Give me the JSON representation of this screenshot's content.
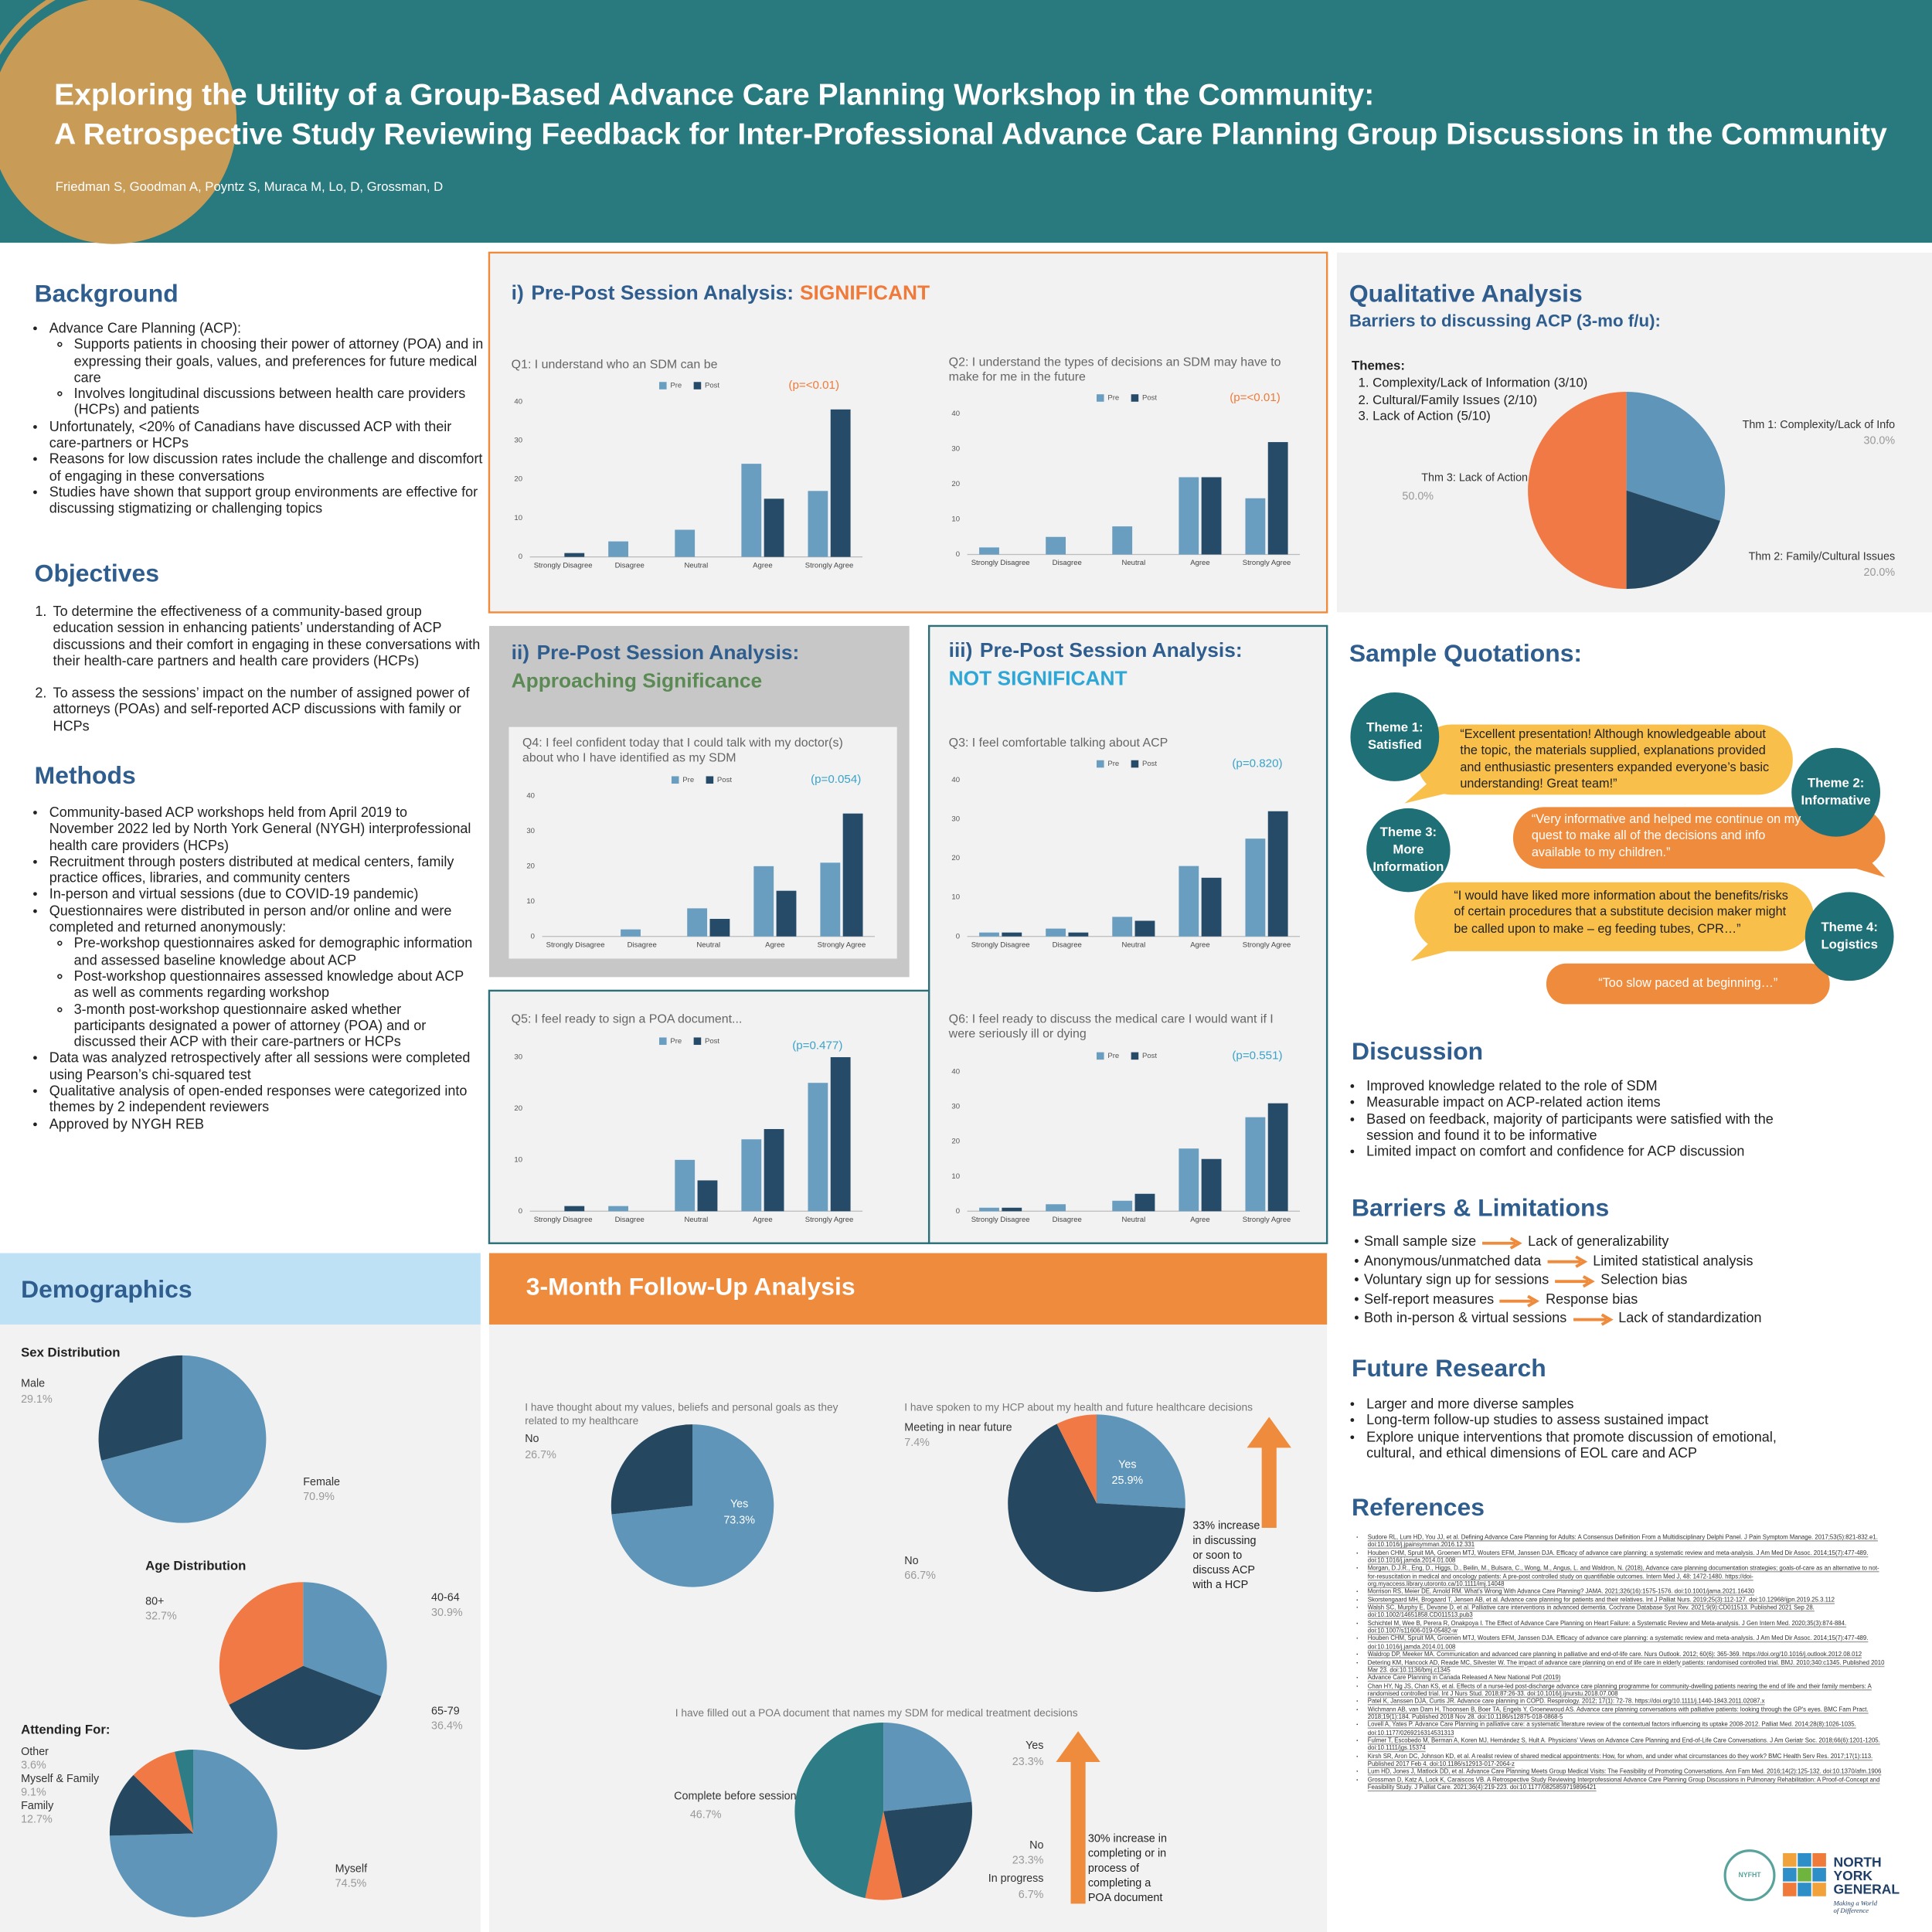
{
  "header": {
    "title_lines": [
      "Exploring the Utility of a Group-Based Advance Care Planning Workshop in the Community:",
      "A Retrospective Study Reviewing Feedback for Inter-Professional Advance Care Planning Group Discussions in the Community"
    ],
    "authors": "Friedman S, Goodman A, Poyntz S, Muraca M, Lo, D, Grossman, D"
  },
  "background": {
    "heading": "Background",
    "items": [
      {
        "text": "Advance Care Planning (ACP):",
        "sub": [
          "Supports patients in choosing their power of attorney (POA) and in expressing their goals, values, and preferences for future medical care",
          "Involves longitudinal discussions between health care providers (HCPs) and patients"
        ]
      },
      {
        "text": "Unfortunately, <20% of Canadians have discussed ACP with their care-partners or HCPs"
      },
      {
        "text": "Reasons for low discussion rates include the challenge and discomfort of engaging in these conversations"
      },
      {
        "text": "Studies have shown that support group environments are effective for discussing stigmatizing or challenging topics"
      }
    ]
  },
  "objectives": {
    "heading": "Objectives",
    "items": [
      "To determine the effectiveness of a community-based group education session in enhancing patients’ understanding of ACP discussions and their comfort in engaging in these conversations with their health-care partners and health care providers (HCPs)",
      "To assess the sessions’ impact on the number of assigned power of attorneys (POAs) and self-reported ACP discussions with family or HCPs"
    ]
  },
  "methods": {
    "heading": "Methods",
    "items": [
      {
        "text": "Community-based ACP workshops held from April 2019 to November 2022 led by North York General (NYGH) interprofessional health care providers (HCPs)"
      },
      {
        "text": "Recruitment through posters distributed at medical centers, family practice offices, libraries, and community centers"
      },
      {
        "text": "In-person and virtual sessions (due to COVID-19 pandemic)"
      },
      {
        "text": "Questionnaires were distributed in person and/or online and were completed and returned anonymously:",
        "sub": [
          "Pre-workshop questionnaires asked for demographic information and assessed baseline knowledge about ACP",
          "Post-workshop questionnaires assessed knowledge about ACP as well as comments regarding workshop",
          "3-month post-workshop questionnaire asked whether participants designated a power of attorney (POA) and or discussed their ACP with their care-partners or HCPs"
        ]
      },
      {
        "text": "Data was analyzed retrospectively after all sessions were completed using Pearson’s chi-squared test"
      },
      {
        "text": "Qualitative analysis of open-ended responses were categorized into themes by 2 independent reviewers"
      },
      {
        "text": "Approved by NYGH REB"
      }
    ]
  },
  "panels": [
    {
      "label": "i)",
      "title": "Pre-Post Session Analysis:",
      "status": "SIGNIFICANT"
    },
    {
      "label": "ii)",
      "title": "Pre-Post Session Analysis:",
      "status": "Approaching Significance"
    },
    {
      "label": "iii)",
      "title": "Pre-Post Session Analysis:",
      "status": "NOT SIGNIFICANT"
    }
  ],
  "chart_data": [
    {
      "type": "bar",
      "title": "Q1:  I understand who an SDM can be",
      "annotation": "(p=<0.01)",
      "categories": [
        "Strongly Disagree",
        "Disagree",
        "Neutral",
        "Agree",
        "Strongly Agree"
      ],
      "series": [
        {
          "name": "Pre",
          "color": "#6a9ec0",
          "values": [
            0,
            4,
            7,
            24,
            17
          ]
        },
        {
          "name": "Post",
          "color": "#264b69",
          "values": [
            1,
            0,
            0,
            15,
            38
          ]
        }
      ],
      "ylim": [
        0,
        40
      ],
      "yticks": [
        0,
        10,
        20,
        30,
        40
      ]
    },
    {
      "type": "bar",
      "title": "Q2: I understand the types of decisions an SDM may have to make for me in the future",
      "annotation": "(p=<0.01)",
      "categories": [
        "Strongly Disagree",
        "Disagree",
        "Neutral",
        "Agree",
        "Strongly Agree"
      ],
      "series": [
        {
          "name": "Pre",
          "color": "#6a9ec0",
          "values": [
            2,
            5,
            8,
            22,
            16
          ]
        },
        {
          "name": "Post",
          "color": "#264b69",
          "values": [
            0,
            0,
            0,
            22,
            32
          ]
        }
      ],
      "ylim": [
        0,
        40
      ],
      "yticks": [
        0,
        10,
        20,
        30,
        40
      ]
    },
    {
      "type": "bar",
      "title": "Q4: I feel confident today that I could talk with my doctor(s) about who I have identified as my SDM",
      "annotation": "(p=0.054)",
      "categories": [
        "Strongly Disagree",
        "Disagree",
        "Neutral",
        "Agree",
        "Strongly Agree"
      ],
      "series": [
        {
          "name": "Pre",
          "color": "#6a9ec0",
          "values": [
            0,
            2,
            8,
            20,
            21
          ]
        },
        {
          "name": "Post",
          "color": "#264b69",
          "values": [
            0,
            0,
            5,
            13,
            35
          ]
        }
      ],
      "ylim": [
        0,
        40
      ],
      "yticks": [
        0,
        10,
        20,
        30,
        40
      ]
    },
    {
      "type": "bar",
      "title": "Q3: I feel comfortable talking about ACP",
      "annotation": "(p=0.820)",
      "categories": [
        "Strongly Disagree",
        "Disagree",
        "Neutral",
        "Agree",
        "Strongly Agree"
      ],
      "series": [
        {
          "name": "Pre",
          "color": "#6a9ec0",
          "values": [
            1,
            2,
            5,
            18,
            25
          ]
        },
        {
          "name": "Post",
          "color": "#264b69",
          "values": [
            1,
            1,
            4,
            15,
            32
          ]
        }
      ],
      "ylim": [
        0,
        40
      ],
      "yticks": [
        0,
        10,
        20,
        30,
        40
      ]
    },
    {
      "type": "bar",
      "title": "Q5: I feel ready to sign a POA document...",
      "annotation": "(p=0.477)",
      "categories": [
        "Strongly Disagree",
        "Disagree",
        "Neutral",
        "Agree",
        "Strongly Agree"
      ],
      "series": [
        {
          "name": "Pre",
          "color": "#6a9ec0",
          "values": [
            0,
            1,
            10,
            14,
            25
          ]
        },
        {
          "name": "Post",
          "color": "#264b69",
          "values": [
            1,
            0,
            6,
            16,
            30
          ]
        }
      ],
      "ylim": [
        0,
        30
      ],
      "yticks": [
        0,
        10,
        20,
        30
      ]
    },
    {
      "type": "bar",
      "title": "Q6: I feel ready to discuss the medical care I would want if I were seriously ill or dying",
      "annotation": "(p=0.551)",
      "categories": [
        "Strongly Disagree",
        "Disagree",
        "Neutral",
        "Agree",
        "Strongly Agree"
      ],
      "series": [
        {
          "name": "Pre",
          "color": "#6a9ec0",
          "values": [
            1,
            2,
            3,
            18,
            27
          ]
        },
        {
          "name": "Post",
          "color": "#264b69",
          "values": [
            1,
            0,
            5,
            15,
            31
          ]
        }
      ],
      "ylim": [
        0,
        40
      ],
      "yticks": [
        0,
        10,
        20,
        30,
        40
      ]
    },
    {
      "type": "pie",
      "categories": [
        "Thm 1: Complexity/Lack of Info",
        "Thm 2: Family/Cultural Issues",
        "Thm 3:  Lack of Action"
      ],
      "values": [
        30,
        20,
        50
      ],
      "value_labels": [
        "30.0%",
        "20.0%",
        "50.0%"
      ],
      "colors": [
        "#5e95b8",
        "#25475f",
        "#f07945"
      ]
    },
    {
      "type": "pie",
      "title": "Sex Distribution",
      "categories": [
        "Female",
        "Male"
      ],
      "values": [
        70.9,
        29.1
      ],
      "value_labels": [
        "70.9%",
        "29.1%"
      ],
      "colors": [
        "#5e95b8",
        "#25475f"
      ]
    },
    {
      "type": "pie",
      "title": "Age Distribution",
      "categories": [
        "40-64",
        "65-79",
        "80+"
      ],
      "values": [
        30.9,
        36.4,
        32.7
      ],
      "value_labels": [
        "30.9%",
        "36.4%",
        "32.7%"
      ],
      "colors": [
        "#5e95b8",
        "#25475f",
        "#f07945"
      ]
    },
    {
      "type": "pie",
      "title": "Attending For:",
      "categories": [
        "Myself",
        "Family",
        "Myself & Family",
        "Other"
      ],
      "values": [
        74.5,
        12.7,
        9.1,
        3.6
      ],
      "value_labels": [
        "74.5%",
        "12.7%",
        "9.1%",
        "3.6%"
      ],
      "colors": [
        "#5e95b8",
        "#25475f",
        "#f07945",
        "#2e7d86"
      ]
    },
    {
      "type": "pie",
      "title": "I have thought about my values, beliefs and personal goals as they related to my healthcare",
      "categories": [
        "Yes",
        "No"
      ],
      "values": [
        73.3,
        26.7
      ],
      "value_labels": [
        "73.3%",
        "26.7%"
      ],
      "colors": [
        "#5e95b8",
        "#25475f"
      ]
    },
    {
      "type": "pie",
      "title": "I have spoken to my HCP about my health and future healthcare decisions",
      "categories": [
        "Yes",
        "No",
        "Meeting in near future"
      ],
      "values": [
        25.9,
        66.7,
        7.4
      ],
      "value_labels": [
        "25.9%",
        "66.7%",
        "7.4%"
      ],
      "colors": [
        "#5e95b8",
        "#25475f",
        "#f07945"
      ]
    },
    {
      "type": "pie",
      "title": "I have filled out a POA document that names my SDM for medical treatment decisions",
      "categories": [
        "Yes",
        "No",
        "In progress",
        "Complete before session"
      ],
      "values": [
        23.3,
        23.3,
        6.7,
        46.7
      ],
      "value_labels": [
        "23.3%",
        "23.3%",
        "6.7%",
        "46.7%"
      ],
      "colors": [
        "#5e95b8",
        "#25475f",
        "#f07945",
        "#2e7d86"
      ]
    }
  ],
  "qualitative": {
    "heading": "Qualitative Analysis",
    "subheading": "Barriers to discussing ACP (3-mo f/u):",
    "themes_label": "Themes:",
    "themes": [
      "Complexity/Lack of Information (3/10)",
      "Cultural/Family Issues (2/10)",
      "Lack of Action (5/10)"
    ]
  },
  "demographics": {
    "heading": "Demographics"
  },
  "followup": {
    "heading": "3-Month Follow-Up Analysis",
    "notes": [
      "33% increase in discussing or soon to discuss ACP with a HCP",
      "30% increase in completing or in process of completing a POA document"
    ]
  },
  "quotations": {
    "heading": "Sample Quotations:",
    "themes": [
      [
        "Theme 1:",
        "Satisfied"
      ],
      [
        "Theme 2:",
        "Informative"
      ],
      [
        "Theme 3:",
        "More",
        "Information"
      ],
      [
        "Theme 4:",
        "Logistics"
      ]
    ],
    "quotes": [
      "“Excellent presentation! Although knowledgeable about the topic, the materials supplied, explanations provided and enthusiastic presenters expanded everyone’s basic understanding!  Great team!”",
      "“Very informative and helped me continue on my quest to make all  of the decisions and info available to my children.”",
      "“I would have liked more information about the benefits/risks of certain procedures that a substitute decision maker might be called upon to make – eg feeding tubes, CPR…”",
      "“Too slow paced at beginning…”"
    ]
  },
  "discussion": {
    "heading": "Discussion",
    "items": [
      "Improved knowledge related to the role of SDM",
      "Measurable impact on ACP-related action items",
      "Based on feedback, majority of participants were satisfied with the session and found it to be informative",
      "Limited impact on comfort and confidence for ACP discussion"
    ]
  },
  "barriers": {
    "heading": "Barriers & Limitations",
    "items": [
      [
        "Small sample size",
        "Lack of generalizability"
      ],
      [
        "Anonymous/unmatched data",
        "Limited statistical analysis"
      ],
      [
        "Voluntary sign up for sessions",
        "Selection bias"
      ],
      [
        "Self-report measures",
        "Response bias"
      ],
      [
        "Both in-person & virtual sessions",
        "Lack of standardization"
      ]
    ]
  },
  "future": {
    "heading": "Future Research",
    "items": [
      "Larger and more diverse samples",
      "Long-term follow-up studies to assess sustained impact",
      "Explore unique interventions that promote discussion of emotional, cultural, and ethical dimensions of EOL care and ACP"
    ]
  },
  "references": {
    "heading": "References",
    "items": [
      "Sudore RL, Lum HD, You JJ, et al. Defining Advance Care Planning for Adults: A Consensus Definition From a Multidisciplinary Delphi Panel. J Pain Symptom Manage. 2017;53(5):821-832.e1. doi:10.1016/j.jpainsymman.2016.12.331",
      "Houben CHM, Spruit MA, Groenen MTJ, Wouters EFM, Janssen DJA. Efficacy of advance care planning: a systematic review and meta-analysis. J Am Med Dir Assoc. 2014;15(7):477-489. doi:10.1016/j.jamda.2014.01.008",
      "Morgan, D.J.R., Eng, D., Higgs, D., Beilin, M., Bulsara, C., Wong, M., Angus, L. and Waldron, N. (2018), Advance care planning documentation strategies; goals-of-care as an alternative to not-for-resuscitation in medical and oncology patients: A pre-post controlled study on quantifiable outcomes. Intern Med J, 48: 1472-1480. https://doi-org.myaccess.library.utoronto.ca/10.1111/imj.14048",
      "Morrison RS, Meier DE, Arnold RM. What's Wrong With Advance Care Planning? JAMA. 2021;326(16):1575-1576. doi:10.1001/jama.2021.16430",
      "Skorstengaard MH, Brogaard T, Jensen AB, et al. Advance care planning for patients and their relatives. Int J Palliat Nurs. 2019;25(3):112-127. doi:10.12968/ijpn.2019.25.3.112",
      "Walsh SC, Murphy E, Devane D, et al. Palliative care interventions in advanced dementia. Cochrane Database Syst Rev. 2021;9(9):CD011513. Published 2021 Sep 28. doi:10.1002/14651858.CD011513.pub3",
      "Schichtel M, Wee B, Perera R, Onakpoya I. The Effect of Advance Care Planning on Heart Failure: a Systematic Review and Meta-analysis. J Gen Intern Med. 2020;35(3):874-884. doi:10.1007/s11606-019-05482-w",
      "Houben CHM, Spruit MA, Groenen MTJ, Wouters EFM, Janssen DJA. Efficacy of advance care planning: a systematic review and meta-analysis. J Am Med Dir Assoc. 2014;15(7):477-489. doi:10.1016/j.jamda.2014.01.008",
      "Waldrop DP, Meeker MA. Communication and advanced care planning in palliative and end-of-life care. Nurs Outlook. 2012; 60(6): 365-369. https://doi.org/10.1016/j.outlook.2012.08.012",
      "Detering KM, Hancock AD, Reade MC, Silvester W. The impact of advance care planning on end of life care in elderly patients: randomised controlled trial. BMJ. 2010;340:c1345. Published 2010 Mar 23. doi:10.1136/bmj.c1345",
      "Advance Care Planning in Canada Released A New National Poll (2019)",
      "Chan HY, Ng JS, Chan KS, et al. Effects of a nurse-led post-discharge advance care planning programme for community-dwelling patients nearing the end of life and their family members: A randomised controlled trial. Int J Nurs Stud. 2018;87:26-33. doi:10.1016/j.ijnurstu.2018.07.008",
      "Patel K, Janssen DJA, Curtis JR. Advance care planning in COPD. Respirology. 2012; 17(1): 72-78. https://doi.org/10.1111/j.1440-1843.2011.02087.x",
      "Wichmann AB, van Dam H, Thoonsen B, Boer TA, Engels Y, Groenewoud AS. Advance care planning conversations with palliative patients: looking through the GP's eyes. BMC Fam Pract. 2018;19(1):184. Published 2018 Nov 28. doi:10.1186/s12875-018-0868-5",
      "Lovell A, Yates P. Advance Care Planning in palliative care: a systematic literature review of the contextual factors influencing its uptake 2008-2012. Palliat Med. 2014;28(8):1026-1035. doi:10.1177/0269216314531313",
      "Fulmer T, Escobedo M, Berman A, Koren MJ, Hernández S, Hult A. Physicians' Views on Advance Care Planning and End-of-Life Care Conversations. J Am Geriatr Soc. 2018;66(6):1201-1205. doi:10.1111/jgs.15374",
      "Kirsh SR, Aron DC, Johnson KD, et al. A realist review of shared medical appointments: How, for whom, and under what circumstances do they work? BMC Health Serv Res. 2017;17(1):113. Published 2017 Feb 4. doi:10.1186/s12913-017-2064-z",
      "Lum HD, Jones J, Matlock DD, et al. Advance Care Planning Meets Group Medical Visits: The Feasibility of Promoting Conversations. Ann Fam Med. 2016;14(2):125-132. doi:10.1370/afm.1906",
      "Grossman D, Katz A, Lock K, Caraiscos VB. A Retrospective Study Reviewing Interprofessional Advance Care Planning Group Discussions in Pulmonary Rehabilitation: A Proof-of-Concept and Feasibility Study. J Palliat Care. 2021;36(4):219-223. doi:10.1177/0825859719896421"
    ]
  },
  "logos": {
    "nyfht": "NYFHT",
    "name_lines": [
      "NORTH",
      "YORK",
      "GENERAL"
    ],
    "tagline_lines": [
      "Making a World",
      "of Difference"
    ]
  }
}
